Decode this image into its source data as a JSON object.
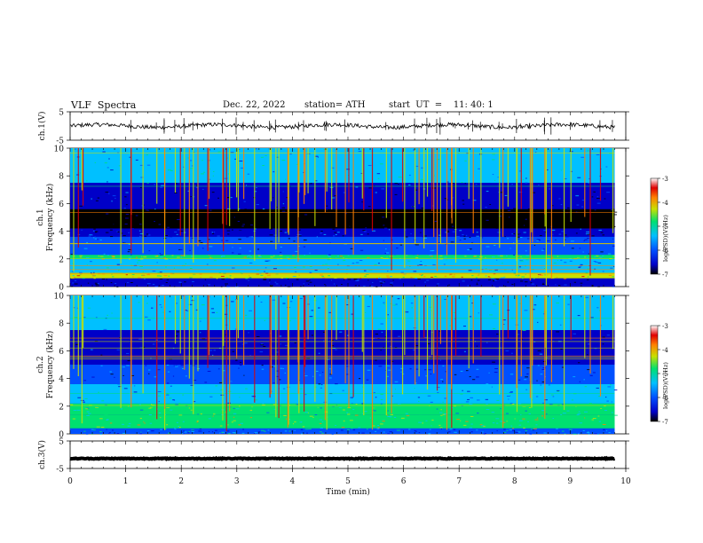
{
  "header": {
    "title": "VLF  Spectra",
    "date": "Dec. 22, 2022",
    "station": "station= ATH",
    "start": "start  UT  =    11: 40: 1"
  },
  "colorbar": {
    "label": "log(PSD)(V²/Hz)",
    "ticks": [
      "-3",
      "-4",
      "-5",
      "-6",
      "-7"
    ],
    "range": [
      -7,
      -3
    ],
    "colors": [
      "#000000",
      "#0000c8",
      "#0050ff",
      "#00c0ff",
      "#00e070",
      "#c8e000",
      "#ff8000",
      "#e00000",
      "#ffffff"
    ]
  },
  "chart_data": [
    {
      "type": "line",
      "ylabel": "ch.1(V)",
      "ylim": [
        -5,
        5
      ],
      "yticks": [
        "5",
        "-5"
      ],
      "baseline": 0,
      "description_values": "noisy trace near 0 V with impulsive spikes"
    },
    {
      "type": "heatmap",
      "ylabel": "ch.1\nFrequency (kHz)",
      "ylabel_lines": [
        "ch.1",
        "Frequency (kHz)"
      ],
      "ylim": [
        0,
        10
      ],
      "yticks": [
        "0",
        "2",
        "4",
        "6",
        "8",
        "10"
      ],
      "xlim": [
        0,
        9.8
      ],
      "bands": [
        {
          "from": 0.0,
          "to": 0.6,
          "level": -6.4
        },
        {
          "from": 0.6,
          "to": 1.0,
          "level": -4.2
        },
        {
          "from": 1.0,
          "to": 2.0,
          "level": -5.4
        },
        {
          "from": 2.0,
          "to": 2.3,
          "level": -4.6
        },
        {
          "from": 2.3,
          "to": 3.6,
          "level": -5.9
        },
        {
          "from": 3.6,
          "to": 4.2,
          "level": -6.1
        },
        {
          "from": 4.2,
          "to": 5.6,
          "level": -6.9
        },
        {
          "from": 5.6,
          "to": 7.5,
          "level": -6.2
        },
        {
          "from": 7.5,
          "to": 10.0,
          "level": -5.4
        }
      ]
    },
    {
      "type": "heatmap",
      "ylabel": "ch.2\nFrequency (kHz)",
      "ylabel_lines": [
        "ch.2",
        "Frequency (kHz)"
      ],
      "ylim": [
        0,
        10
      ],
      "yticks": [
        "0",
        "2",
        "4",
        "6",
        "8",
        "10"
      ],
      "xlim": [
        0,
        9.8
      ],
      "bands": [
        {
          "from": 0.0,
          "to": 0.4,
          "level": -5.6
        },
        {
          "from": 0.4,
          "to": 1.4,
          "level": -4.6
        },
        {
          "from": 1.4,
          "to": 2.2,
          "level": -4.9
        },
        {
          "from": 2.2,
          "to": 3.6,
          "level": -5.4
        },
        {
          "from": 3.6,
          "to": 5.0,
          "level": -5.9
        },
        {
          "from": 5.0,
          "to": 7.5,
          "level": -6.2
        },
        {
          "from": 7.5,
          "to": 10.0,
          "level": -5.5
        }
      ]
    },
    {
      "type": "line",
      "ylabel": "ch.3(V)",
      "ylim": [
        -5,
        5
      ],
      "yticks": [
        "5",
        "-5"
      ],
      "baseline": -1.4,
      "description_values": "thick flat trace near -1.4 V"
    }
  ],
  "xaxis": {
    "label": "Time  (min)",
    "xlim": [
      0,
      10
    ],
    "ticks": [
      "0",
      "1",
      "2",
      "3",
      "4",
      "5",
      "6",
      "7",
      "8",
      "9",
      "10"
    ]
  }
}
